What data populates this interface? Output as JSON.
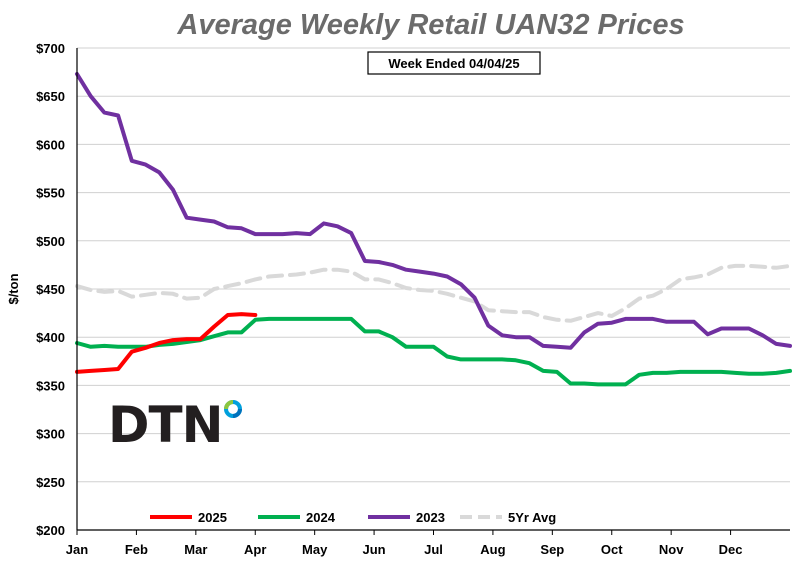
{
  "chart_data": {
    "type": "line",
    "title": "Average Weekly Retail UAN32 Prices",
    "subtitle": "Week Ended 04/04/25",
    "xlabel": "",
    "ylabel": "$/ton",
    "ylim": [
      200,
      700
    ],
    "yticks": [
      "$200",
      "$250",
      "$300",
      "$350",
      "$400",
      "$450",
      "$500",
      "$550",
      "$600",
      "$650",
      "$700"
    ],
    "xlim": [
      1,
      53
    ],
    "months": [
      "Jan",
      "Feb",
      "Mar",
      "Apr",
      "May",
      "Jun",
      "Jul",
      "Aug",
      "Sep",
      "Oct",
      "Nov",
      "Dec"
    ],
    "grid": true,
    "legend_position": "bottom",
    "logo": "DTN",
    "series": [
      {
        "name": "2025",
        "color": "#ff0000",
        "dashed": false,
        "x": [
          1,
          2,
          3,
          4,
          5,
          6,
          7,
          8,
          9,
          10,
          11,
          12,
          13,
          14
        ],
        "y": [
          364,
          365,
          366,
          367,
          385,
          389,
          394,
          397,
          398,
          398,
          411,
          423,
          424,
          423
        ]
      },
      {
        "name": "2024",
        "color": "#00b050",
        "dashed": false,
        "x": [
          1,
          2,
          3,
          4,
          5,
          6,
          7,
          8,
          9,
          10,
          11,
          12,
          13,
          14,
          15,
          16,
          17,
          18,
          19,
          20,
          21,
          22,
          23,
          24,
          25,
          26,
          27,
          28,
          29,
          30,
          31,
          32,
          33,
          34,
          35,
          36,
          37,
          38,
          39,
          40,
          41,
          42,
          43,
          44,
          45,
          46,
          47,
          48,
          49,
          50,
          51,
          52,
          53
        ],
        "y": [
          394,
          390,
          391,
          390,
          390,
          390,
          392,
          393,
          395,
          397,
          401,
          405,
          405,
          418,
          419,
          419,
          419,
          419,
          419,
          419,
          419,
          406,
          406,
          400,
          390,
          390,
          390,
          380,
          377,
          377,
          377,
          377,
          376,
          373,
          365,
          364,
          352,
          352,
          351,
          351,
          351,
          361,
          363,
          363,
          364,
          364,
          364,
          364,
          363,
          362,
          362,
          363,
          365
        ]
      },
      {
        "name": "2023",
        "color": "#7030a0",
        "dashed": false,
        "x": [
          1,
          2,
          3,
          4,
          5,
          6,
          7,
          8,
          9,
          10,
          11,
          12,
          13,
          14,
          15,
          16,
          17,
          18,
          19,
          20,
          21,
          22,
          23,
          24,
          25,
          26,
          27,
          28,
          29,
          30,
          31,
          32,
          33,
          34,
          35,
          36,
          37,
          38,
          39,
          40,
          41,
          42,
          43,
          44,
          45,
          46,
          47,
          48,
          49,
          50,
          51,
          52,
          53
        ],
        "y": [
          673,
          650,
          633,
          630,
          583,
          579,
          571,
          553,
          524,
          522,
          520,
          514,
          513,
          507,
          507,
          507,
          508,
          507,
          518,
          515,
          508,
          479,
          478,
          475,
          470,
          468,
          466,
          463,
          455,
          441,
          412,
          402,
          400,
          400,
          391,
          390,
          389,
          405,
          414,
          415,
          419,
          419,
          419,
          416,
          416,
          416,
          403,
          409,
          409,
          409,
          402,
          393,
          391
        ]
      },
      {
        "name": "5Yr Avg",
        "color": "#d9d9d9",
        "dashed": true,
        "x": [
          1,
          2,
          3,
          4,
          5,
          6,
          7,
          8,
          9,
          10,
          11,
          12,
          13,
          14,
          15,
          16,
          17,
          18,
          19,
          20,
          21,
          22,
          23,
          24,
          25,
          26,
          27,
          28,
          29,
          30,
          31,
          32,
          33,
          34,
          35,
          36,
          37,
          38,
          39,
          40,
          41,
          42,
          43,
          44,
          45,
          46,
          47,
          48,
          49,
          50,
          51,
          52,
          53
        ],
        "y": [
          453,
          449,
          447,
          448,
          442,
          444,
          446,
          445,
          440,
          441,
          450,
          453,
          456,
          460,
          463,
          464,
          465,
          467,
          470,
          470,
          468,
          460,
          460,
          456,
          451,
          449,
          448,
          445,
          441,
          437,
          428,
          427,
          426,
          426,
          421,
          418,
          417,
          421,
          425,
          422,
          430,
          440,
          443,
          450,
          460,
          462,
          465,
          472,
          474,
          474,
          473,
          472,
          474
        ]
      }
    ]
  }
}
